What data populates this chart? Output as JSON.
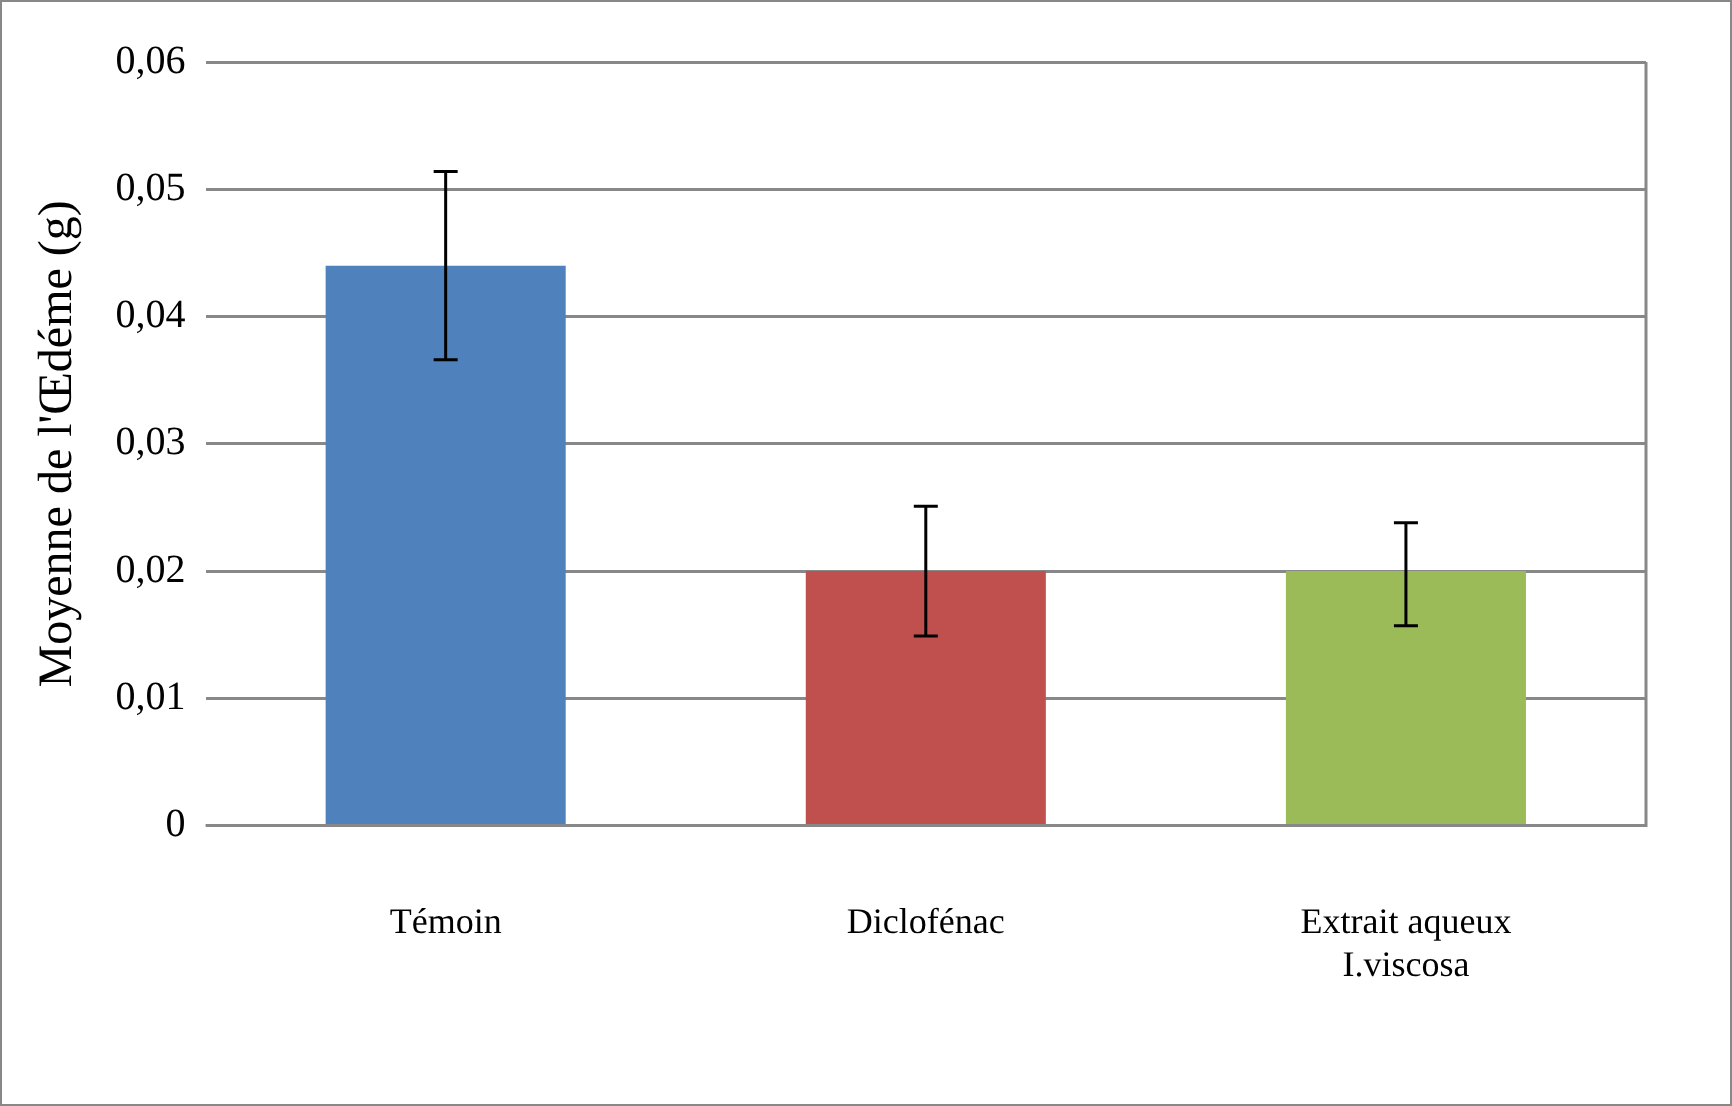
{
  "chart_data": {
    "type": "bar",
    "ylabel": "Moyenne de l'Œdéme (g)",
    "categories": [
      "Témoin",
      "Diclofénac",
      "Extrait aqueux\nI.viscosa"
    ],
    "values": [
      0.044,
      0.02,
      0.02
    ],
    "colors": [
      "#4f81bd",
      "#c0504d",
      "#9bbb59"
    ],
    "errors": [
      [
        0.0366,
        0.0514
      ],
      [
        0.0149,
        0.0251
      ],
      [
        0.0157,
        0.0238
      ]
    ],
    "ylim": [
      0,
      0.06
    ],
    "yticks": [
      {
        "value": 0,
        "label": "0"
      },
      {
        "value": 0.01,
        "label": "0,01"
      },
      {
        "value": 0.02,
        "label": "0,02"
      },
      {
        "value": 0.03,
        "label": "0,03"
      },
      {
        "value": 0.04,
        "label": "0,04"
      },
      {
        "value": 0.05,
        "label": "0,05"
      },
      {
        "value": 0.06,
        "label": "0,06"
      }
    ],
    "grid": "y",
    "legend": false
  }
}
